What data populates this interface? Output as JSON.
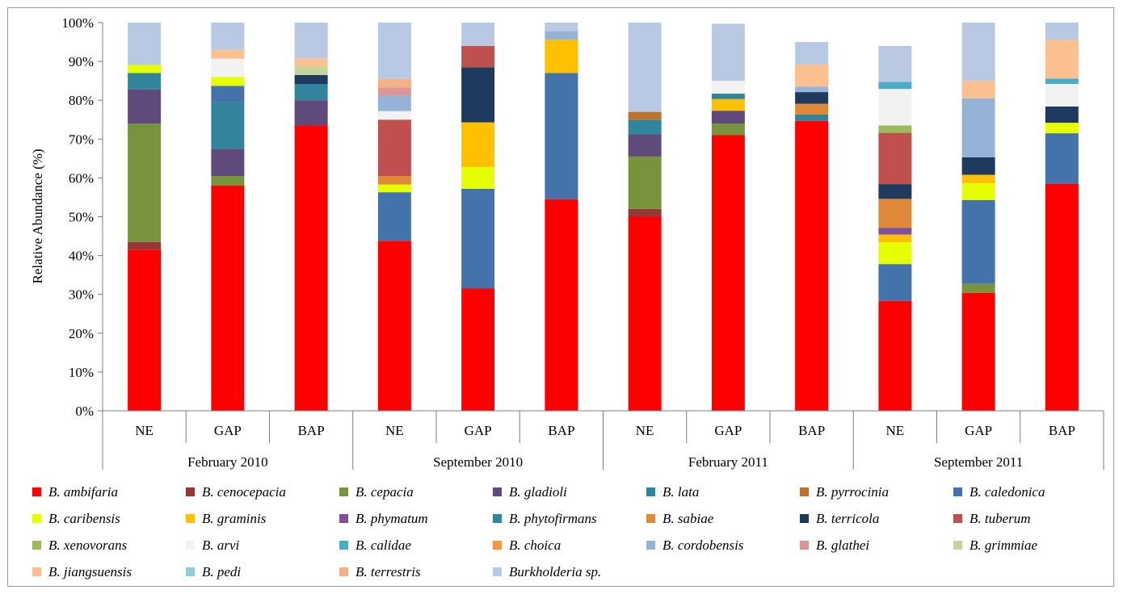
{
  "chart_data": {
    "type": "bar",
    "stacked": true,
    "percent": true,
    "ylabel": "Relative Abundance (%)",
    "ylim": [
      0,
      100
    ],
    "yticks": [
      "0%",
      "10%",
      "20%",
      "30%",
      "40%",
      "50%",
      "60%",
      "70%",
      "80%",
      "90%",
      "100%"
    ],
    "categories": [
      "NE",
      "GAP",
      "BAP",
      "NE",
      "GAP",
      "BAP",
      "NE",
      "GAP",
      "BAP",
      "NE",
      "GAP",
      "BAP"
    ],
    "groups": [
      {
        "label": "February 2010",
        "count": 3
      },
      {
        "label": "September 2010",
        "count": 3
      },
      {
        "label": "February 2011",
        "count": 3
      },
      {
        "label": "September 2011",
        "count": 3
      }
    ],
    "grid": false,
    "legend_position": "bottom",
    "series": [
      {
        "name": "B. ambifaria",
        "color": "#FF0000",
        "values": [
          41.5,
          58,
          73.5,
          43.8,
          31.5,
          54.5,
          50,
          71,
          74.7,
          28.3,
          30.4,
          58.5
        ]
      },
      {
        "name": "B. cenocepacia",
        "color": "#953735",
        "values": [
          2,
          0,
          0,
          0,
          0,
          0,
          2,
          0,
          0,
          0,
          0,
          0
        ]
      },
      {
        "name": "B. cepacia",
        "color": "#77933C",
        "values": [
          30.5,
          2.5,
          0,
          0,
          0,
          0,
          13.5,
          3,
          0,
          0,
          2.3,
          0
        ]
      },
      {
        "name": "B. gladioli",
        "color": "#604A7B",
        "values": [
          8.8,
          7,
          6.5,
          0,
          0,
          0,
          5.7,
          3.3,
          0,
          0,
          0,
          0
        ]
      },
      {
        "name": "B. lata",
        "color": "#31849B",
        "values": [
          4.2,
          12,
          4.2,
          0,
          0,
          0,
          3.8,
          0,
          0,
          0,
          0,
          0
        ]
      },
      {
        "name": "B. pyrrocinia",
        "color": "#C0722D",
        "values": [
          0,
          0,
          0,
          0,
          0,
          0,
          2,
          0,
          0,
          0,
          0,
          0
        ]
      },
      {
        "name": "B. caledonica",
        "color": "#4472AA",
        "values": [
          0,
          4.2,
          0,
          12.5,
          25.7,
          32.5,
          0,
          0,
          0,
          9.5,
          21.6,
          13
        ]
      },
      {
        "name": "B. caribensis",
        "color": "#E5FF00",
        "values": [
          2.1,
          2.3,
          0,
          2,
          5.6,
          0,
          0,
          0,
          0,
          5.6,
          4.3,
          2.7
        ]
      },
      {
        "name": "B. graminis",
        "color": "#FFC000",
        "values": [
          0,
          0,
          0,
          0,
          11.5,
          8.6,
          0,
          3,
          0,
          2,
          2.2,
          0
        ]
      },
      {
        "name": "B. phymatum",
        "color": "#7F4F9F",
        "values": [
          0,
          0,
          0,
          0,
          0,
          0,
          0,
          0,
          0,
          1.7,
          0,
          0
        ]
      },
      {
        "name": "B. phytofirmans",
        "color": "#31849B",
        "values": [
          0,
          0,
          0,
          0,
          0,
          0,
          0,
          1.4,
          1.6,
          0,
          0,
          0
        ]
      },
      {
        "name": "B. sabiae",
        "color": "#E08938",
        "values": [
          0,
          0,
          0,
          2.2,
          0,
          0,
          0,
          0,
          2.8,
          7.5,
          0,
          0
        ]
      },
      {
        "name": "B. terricola",
        "color": "#1F3A5F",
        "values": [
          0,
          0,
          2.3,
          0,
          14.2,
          0,
          0,
          0,
          3,
          3.8,
          4.5,
          4.2
        ]
      },
      {
        "name": "B. tuberum",
        "color": "#C0504D",
        "values": [
          0,
          0,
          0,
          14.5,
          5.5,
          0,
          0,
          0,
          0,
          13.2,
          0,
          0
        ]
      },
      {
        "name": "B. xenovorans",
        "color": "#9BBB59",
        "values": [
          0,
          0,
          0,
          0,
          0,
          0,
          0,
          0,
          0,
          1.9,
          0,
          0
        ]
      },
      {
        "name": "B. arvi",
        "color": "#F2F2F2",
        "values": [
          0,
          4.7,
          0,
          2.2,
          0,
          0,
          0,
          3.3,
          0,
          9.4,
          0,
          5.8
        ]
      },
      {
        "name": "B. calidae",
        "color": "#4BACC6",
        "values": [
          0,
          0,
          0,
          0,
          0,
          0,
          0,
          0,
          0,
          1.8,
          0,
          1.4
        ]
      },
      {
        "name": "B. choica",
        "color": "#F79646",
        "values": [
          0,
          0,
          0,
          0,
          0,
          0,
          0,
          0,
          0,
          0,
          0,
          0
        ]
      },
      {
        "name": "B. cordobensis",
        "color": "#95B3D7",
        "values": [
          0,
          0,
          0,
          4,
          0,
          2.2,
          0,
          0,
          1.4,
          0,
          15.2,
          0
        ]
      },
      {
        "name": "B. glathei",
        "color": "#D99694",
        "values": [
          0,
          0,
          0,
          2.1,
          0,
          0,
          0,
          0,
          0,
          0,
          0,
          0
        ]
      },
      {
        "name": "B. grimmiae",
        "color": "#C3D69B",
        "values": [
          0,
          0,
          2.1,
          0,
          0,
          0,
          0,
          0,
          0,
          0,
          0,
          0
        ]
      },
      {
        "name": "B. jiangsuensis",
        "color": "#FAC090",
        "values": [
          0,
          2.3,
          2.2,
          0,
          0,
          0,
          0,
          0,
          5.7,
          0,
          4.5,
          10
        ]
      },
      {
        "name": "B. pedi",
        "color": "#93CDDD",
        "values": [
          0,
          0,
          0,
          0,
          0,
          0,
          0,
          0,
          0,
          0,
          0,
          0
        ]
      },
      {
        "name": "B. terrestris",
        "color": "#F4B183",
        "values": [
          0,
          0,
          0,
          2.2,
          0,
          0,
          0,
          0,
          0,
          0,
          0,
          0
        ]
      },
      {
        "name": "Burkholderia sp.",
        "color": "#B9C9E3",
        "values": [
          10.9,
          7,
          9.2,
          14.5,
          6,
          2.2,
          23,
          14.7,
          5.8,
          9.3,
          15,
          4.4
        ]
      }
    ]
  }
}
